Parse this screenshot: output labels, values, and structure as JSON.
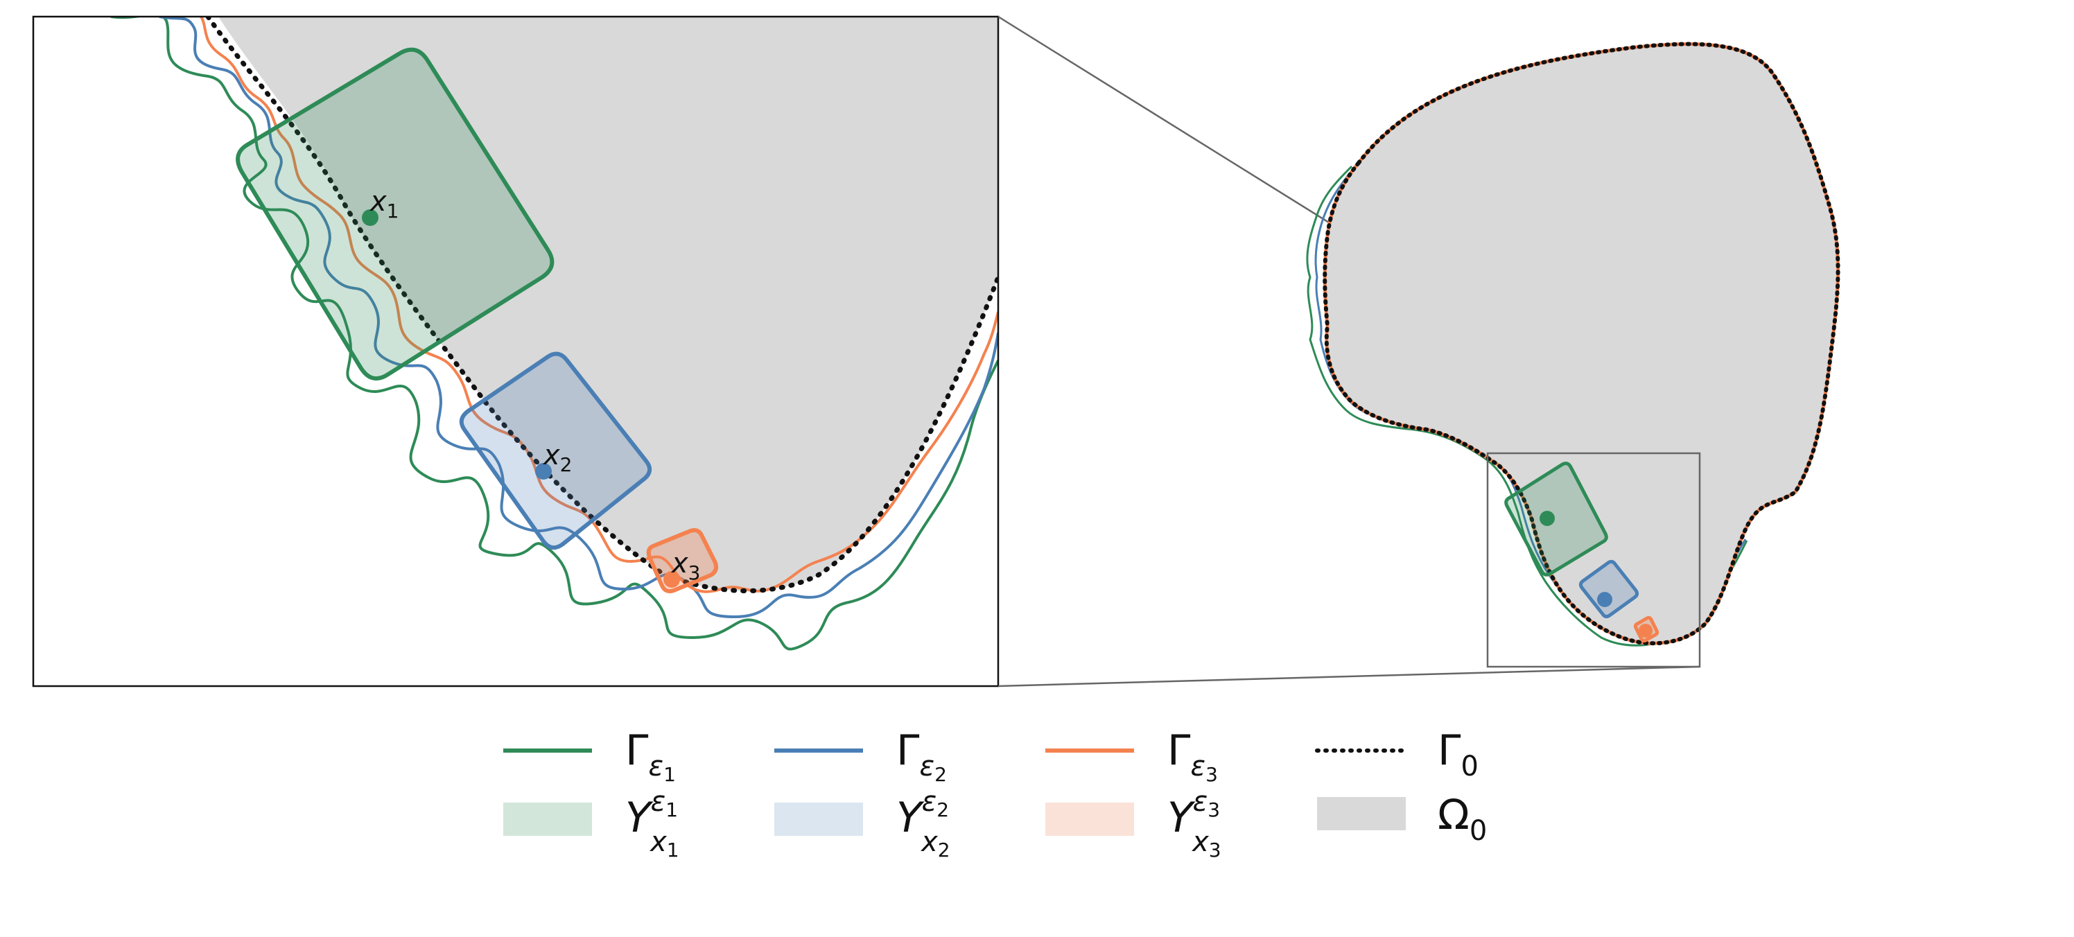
{
  "colors": {
    "gamma_eps1": "#2e8b57",
    "gamma_eps2": "#4a7fb5",
    "gamma_eps3": "#f4824f",
    "gamma_0": "#111111",
    "omega_0": "#d9d9d9",
    "fill_eps1": "#d3e6da",
    "fill_eps2": "#dbe6f0",
    "fill_eps3": "#fbe2d8"
  },
  "points": [
    {
      "name": "x",
      "index": "1"
    },
    {
      "name": "x",
      "index": "2"
    },
    {
      "name": "x",
      "index": "3"
    }
  ],
  "legend": [
    {
      "symbol": "Γ",
      "sub": "ε",
      "subsub": "1"
    },
    {
      "symbol": "Γ",
      "sub": "ε",
      "subsub": "2"
    },
    {
      "symbol": "Γ",
      "sub": "ε",
      "subsub": "3"
    },
    {
      "symbol": "Γ",
      "sub": "0",
      "subsub": ""
    },
    {
      "symbol": "Y",
      "sup": "ε",
      "supsub": "1",
      "sub": "x",
      "subsub": "1"
    },
    {
      "symbol": "Y",
      "sup": "ε",
      "supsub": "2",
      "sub": "x",
      "subsub": "2"
    },
    {
      "symbol": "Y",
      "sup": "ε",
      "supsub": "3",
      "sub": "x",
      "subsub": "3"
    },
    {
      "symbol": "Ω",
      "sub": "0",
      "subsub": ""
    }
  ]
}
